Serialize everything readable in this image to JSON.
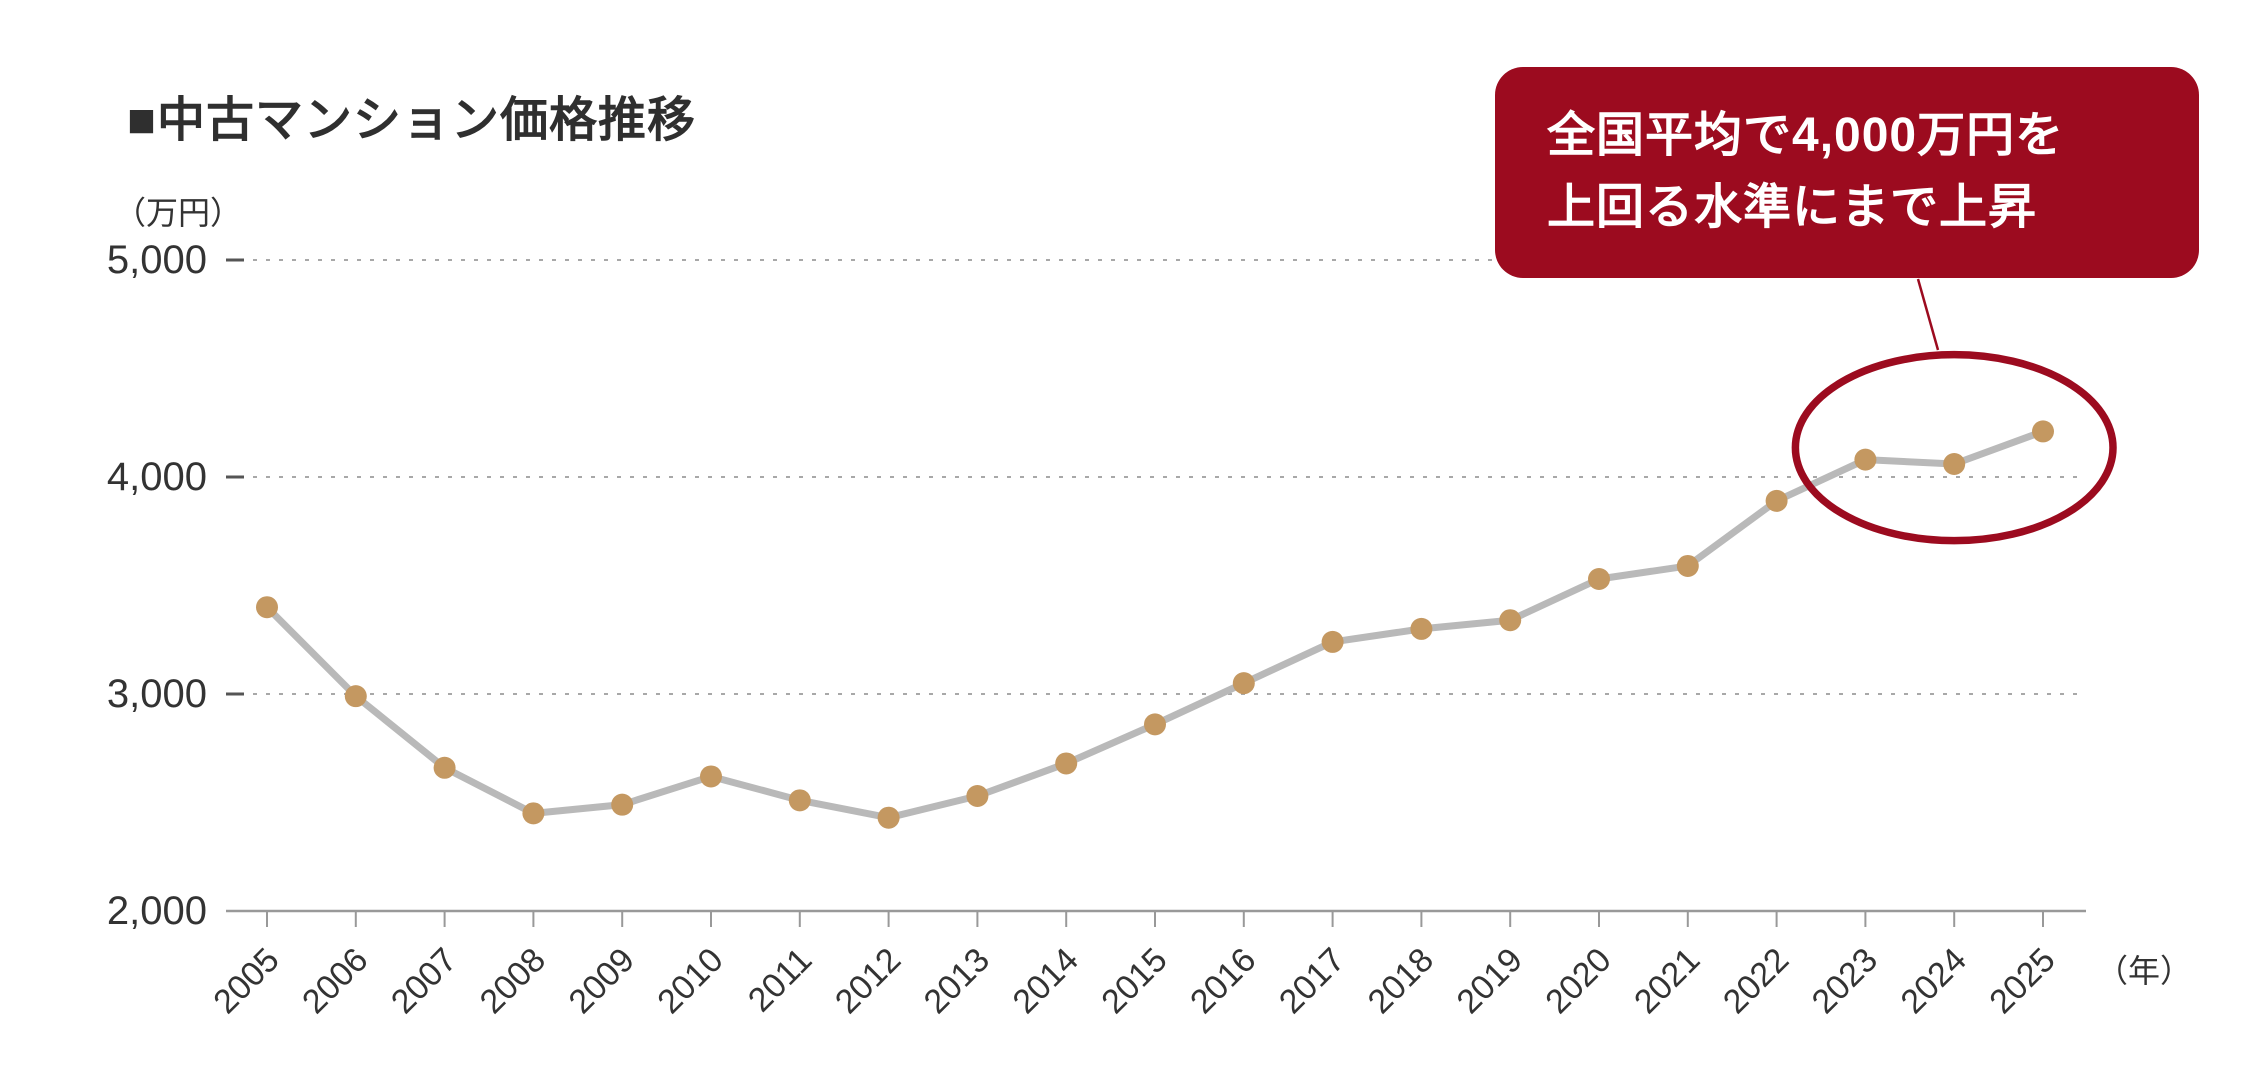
{
  "page": {
    "title": "■中古マンション価格推移",
    "y_unit": "（万円）",
    "x_unit": "（年）"
  },
  "callout": {
    "line1": "全国平均で4,000万円を",
    "line2": "上回る水準にまで上昇"
  },
  "colors": {
    "accent_red": "#9c0b1f",
    "point": "#c49861",
    "line": "#b9b9b9",
    "grid": "#a8a8a8",
    "axis": "#999999",
    "tick": "#555555",
    "text": "#333333"
  },
  "chart_data": {
    "type": "line",
    "title": "■中古マンション価格推移",
    "ylabel": "（万円）",
    "xlabel": "（年）",
    "categories": [
      2005,
      2006,
      2007,
      2008,
      2009,
      2010,
      2011,
      2012,
      2013,
      2014,
      2015,
      2016,
      2017,
      2018,
      2019,
      2020,
      2021,
      2022,
      2023,
      2024,
      2025
    ],
    "values": [
      3400,
      2990,
      2660,
      2450,
      2490,
      2620,
      2510,
      2430,
      2530,
      2680,
      2860,
      3050,
      3240,
      3300,
      3340,
      3530,
      3590,
      3890,
      4080,
      4060,
      4210
    ],
    "ylim": [
      2000,
      5000
    ],
    "yticks": [
      2000,
      3000,
      4000,
      5000
    ],
    "grid": "horizontal-dotted",
    "legend": "none",
    "annotation": {
      "text": "全国平均で4,000万円を上回る水準にまで上昇",
      "highlight_years": [
        2023,
        2024,
        2025
      ]
    }
  }
}
